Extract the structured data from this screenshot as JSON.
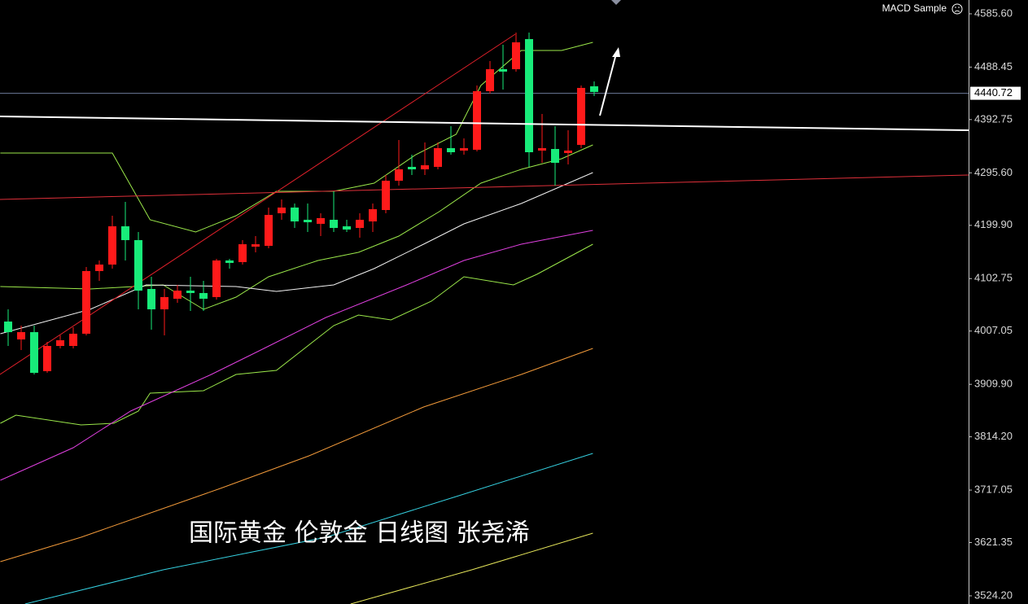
{
  "chart_data": {
    "type": "candlestick",
    "expert_label": "MACD Sample",
    "annotation": "国际黄金 伦敦金 日线图 张尧浠",
    "categories": [
      null,
      null,
      null,
      null,
      null,
      null,
      null,
      null,
      null,
      null,
      null,
      null,
      null,
      null,
      null,
      null,
      null,
      null,
      null,
      null,
      null,
      null,
      null,
      null,
      null,
      null,
      null,
      null,
      null,
      null,
      null,
      null,
      null,
      null,
      null,
      null,
      null,
      null,
      null,
      null,
      null,
      null,
      null,
      null,
      null,
      null
    ],
    "open": [
      4024.4,
      3991.8,
      4005.1,
      3933.9,
      3979.9,
      3979.9,
      4002.2,
      4116.5,
      4128.3,
      4198.1,
      4172.9,
      4083.8,
      4046.7,
      4066.0,
      4080.8,
      4076.4,
      4069.0,
      4135.8,
      4132.8,
      4161.0,
      4162.5,
      4221.9,
      4232.3,
      4210.0,
      4202.6,
      4210.0,
      4198.1,
      4195.1,
      4207.0,
      4227.8,
      4281.2,
      4306.5,
      4302.0,
      4306.5,
      4340.6,
      4336.2,
      4337.7,
      4444.5,
      4484.6,
      4484.6,
      4539.5,
      4336.2,
      4339.1,
      4331.7,
      4346.6,
      4453.4
    ],
    "high": [
      4046.7,
      4017.0,
      4017.0,
      3987.3,
      3999.2,
      4014.0,
      4123.9,
      4135.8,
      4217.4,
      4242.6,
      4187.7,
      4106.1,
      4083.8,
      4091.2,
      4106.1,
      4098.6,
      4138.7,
      4138.7,
      4172.9,
      4180.3,
      4232.3,
      4247.1,
      4239.7,
      4239.7,
      4221.9,
      4261.9,
      4210.0,
      4221.9,
      4239.7,
      4291.6,
      4355.5,
      4328.7,
      4351.0,
      4351.0,
      4380.7,
      4358.4,
      4454.9,
      4499.5,
      4529.2,
      4551.4,
      4551.4,
      4403.0,
      4380.7,
      4373.3,
      4454.9,
      4462.3
    ],
    "low": [
      3979.9,
      3972.5,
      3927.9,
      3930.9,
      3975.4,
      3975.4,
      3999.2,
      4098.6,
      4120.9,
      4135.8,
      4046.7,
      4009.6,
      3999.2,
      4058.6,
      4043.7,
      4043.7,
      4064.5,
      4120.9,
      4128.3,
      4150.6,
      4158.0,
      4210.0,
      4195.1,
      4187.7,
      4180.3,
      4187.7,
      4187.7,
      4177.3,
      4187.7,
      4221.9,
      4272.3,
      4291.6,
      4291.6,
      4302.0,
      4328.7,
      4328.7,
      4334.7,
      4440.1,
      4447.5,
      4480.2,
      4306.5,
      4313.9,
      4272.3,
      4310.9,
      4340.6,
      4435.6
    ],
    "close": [
      4005.1,
      4005.1,
      3930.9,
      3979.9,
      3990.3,
      4002.2,
      4116.5,
      4128.3,
      4198.1,
      4172.9,
      4080.8,
      4046.7,
      4069.0,
      4080.8,
      4076.4,
      4066.0,
      4135.8,
      4131.3,
      4165.4,
      4165.4,
      4218.9,
      4232.3,
      4207.0,
      4205.5,
      4213.0,
      4195.1,
      4192.2,
      4210.0,
      4229.3,
      4281.2,
      4302.0,
      4302.0,
      4309.4,
      4340.6,
      4333.2,
      4340.6,
      4444.5,
      4484.6,
      4480.2,
      4533.6,
      4333.2,
      4340.6,
      4313.9,
      4336.2,
      4450.5,
      4443.1
    ],
    "up_color": "#ff1a1a",
    "down_color": "#18ec7a",
    "series": [
      {
        "color": "#9be84a",
        "x": [
          -0.6,
          8,
          10.9,
          14.4,
          17.5,
          20.6,
          25,
          28.1,
          31.3,
          34.4,
          36.3,
          39.4,
          42.5,
          44.9
        ],
        "values": [
          4331.7,
          4331.7,
          4210.0,
          4187.7,
          4217.4,
          4261.9,
          4261.9,
          4276.8,
          4328.7,
          4365.9,
          4454.9,
          4518.8,
          4518.8,
          4533.6
        ]
      },
      {
        "color": "#9be84a",
        "x": [
          -0.6,
          6.3,
          11.9,
          15,
          17.5,
          20,
          23.8,
          26.9,
          30,
          33.1,
          36.3,
          39.4,
          42.5,
          44.9
        ],
        "values": [
          4088.3,
          4083.8,
          4091.2,
          4046.7,
          4069.0,
          4106.1,
          4135.8,
          4150.6,
          4180.3,
          4224.8,
          4276.8,
          4302.0,
          4321.3,
          4346.6
        ]
      },
      {
        "color": "#9be84a",
        "x": [
          -0.6,
          0.6,
          5.6,
          8.1,
          10,
          10.9,
          15,
          17.5,
          20.6,
          25,
          26.9,
          29.4,
          32.5,
          35,
          38.8,
          40.6,
          44.9
        ],
        "values": [
          3838.9,
          3853.7,
          3835.9,
          3838.9,
          3861.1,
          3893.8,
          3898.2,
          3927.9,
          3935.4,
          4017.0,
          4036.3,
          4027.4,
          4061.5,
          4106.1,
          4091.2,
          4110.5,
          4165.4
        ]
      },
      {
        "color": "#f2f2f2",
        "x": [
          -0.6,
          6.3,
          10.6,
          17.5,
          20.6,
          25,
          28.1,
          31.9,
          35,
          39.4,
          44.9
        ],
        "values": [
          4002.2,
          4046.7,
          4091.2,
          4088.3,
          4079.3,
          4091.2,
          4120.9,
          4165.4,
          4202.6,
          4239.7,
          4296.1
        ]
      },
      {
        "color": "#e040e0",
        "x": [
          -0.6,
          5,
          9.4,
          15.6,
          19.4,
          24.4,
          30.6,
          35,
          39.4,
          44.9
        ],
        "values": [
          3734.9,
          3794.3,
          3861.1,
          3927.9,
          3972.5,
          4031.8,
          4091.2,
          4135.8,
          4165.4,
          4190.7
        ]
      },
      {
        "color": "#f29a3a",
        "x": [
          -0.6,
          5.6,
          16.3,
          23.1,
          31.9,
          39.4,
          44.9
        ],
        "values": [
          3586.5,
          3631.0,
          3720.1,
          3779.5,
          3868.5,
          3927.9,
          3975.4
        ]
      },
      {
        "color": "#35d0e0",
        "x": [
          1.3,
          11.9,
          24.4,
          34.4,
          44.9
        ],
        "values": [
          3509.3,
          3571.6,
          3631.0,
          3705.3,
          3783.9
        ]
      },
      {
        "color": "#e6e65a",
        "x": [
          26.3,
          35.6,
          44.9
        ],
        "values": [
          3509.3,
          3571.6,
          3638.5
        ]
      }
    ],
    "last_price": 4440.72,
    "xlim": [
      -0.625,
      73.75
    ],
    "ylim": [
      3509.3,
      4610.8
    ],
    "yticks": [
      {
        "value": 4585.6,
        "label": "4585.60"
      },
      4488.45,
      4392.75,
      {
        "value": 4295.6,
        "label": "4295.60"
      },
      {
        "value": 4199.9,
        "label": "4199.90"
      },
      4102.75,
      4007.05,
      {
        "value": 3909.9,
        "label": "3909.90"
      },
      {
        "value": 3814.2,
        "label": "3814.20"
      },
      3717.05,
      3621.35,
      {
        "value": 3524.2,
        "label": "3524.20"
      }
    ]
  }
}
